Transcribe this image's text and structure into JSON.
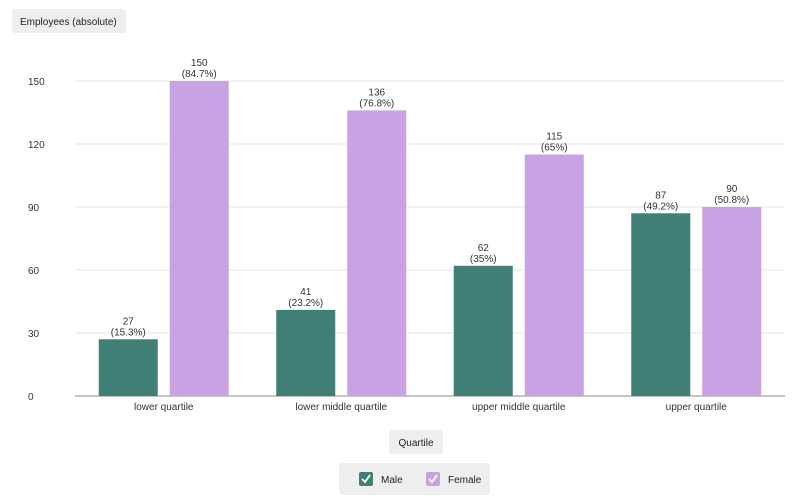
{
  "chart_data": {
    "type": "bar",
    "ylabel": "Employees (absolute)",
    "xlabel": "Quartile",
    "categories": [
      "lower quartile",
      "lower middle quartile",
      "upper middle quartile",
      "upper quartile"
    ],
    "series": [
      {
        "name": "Male",
        "values": [
          27,
          41,
          62,
          87
        ],
        "percents": [
          "(15.3%)",
          "(23.2%)",
          "(35%)",
          "(49.2%)"
        ],
        "color": "#3f7f76"
      },
      {
        "name": "Female",
        "values": [
          150,
          136,
          115,
          90
        ],
        "percents": [
          "(84.7%)",
          "(76.8%)",
          "(65%)",
          "(50.8%)"
        ],
        "color": "#c8a2e2"
      }
    ],
    "ylim": [
      0,
      150
    ],
    "yticks": [
      0,
      30,
      60,
      90,
      120,
      150
    ],
    "grid": true,
    "legend_position": "bottom-center"
  }
}
